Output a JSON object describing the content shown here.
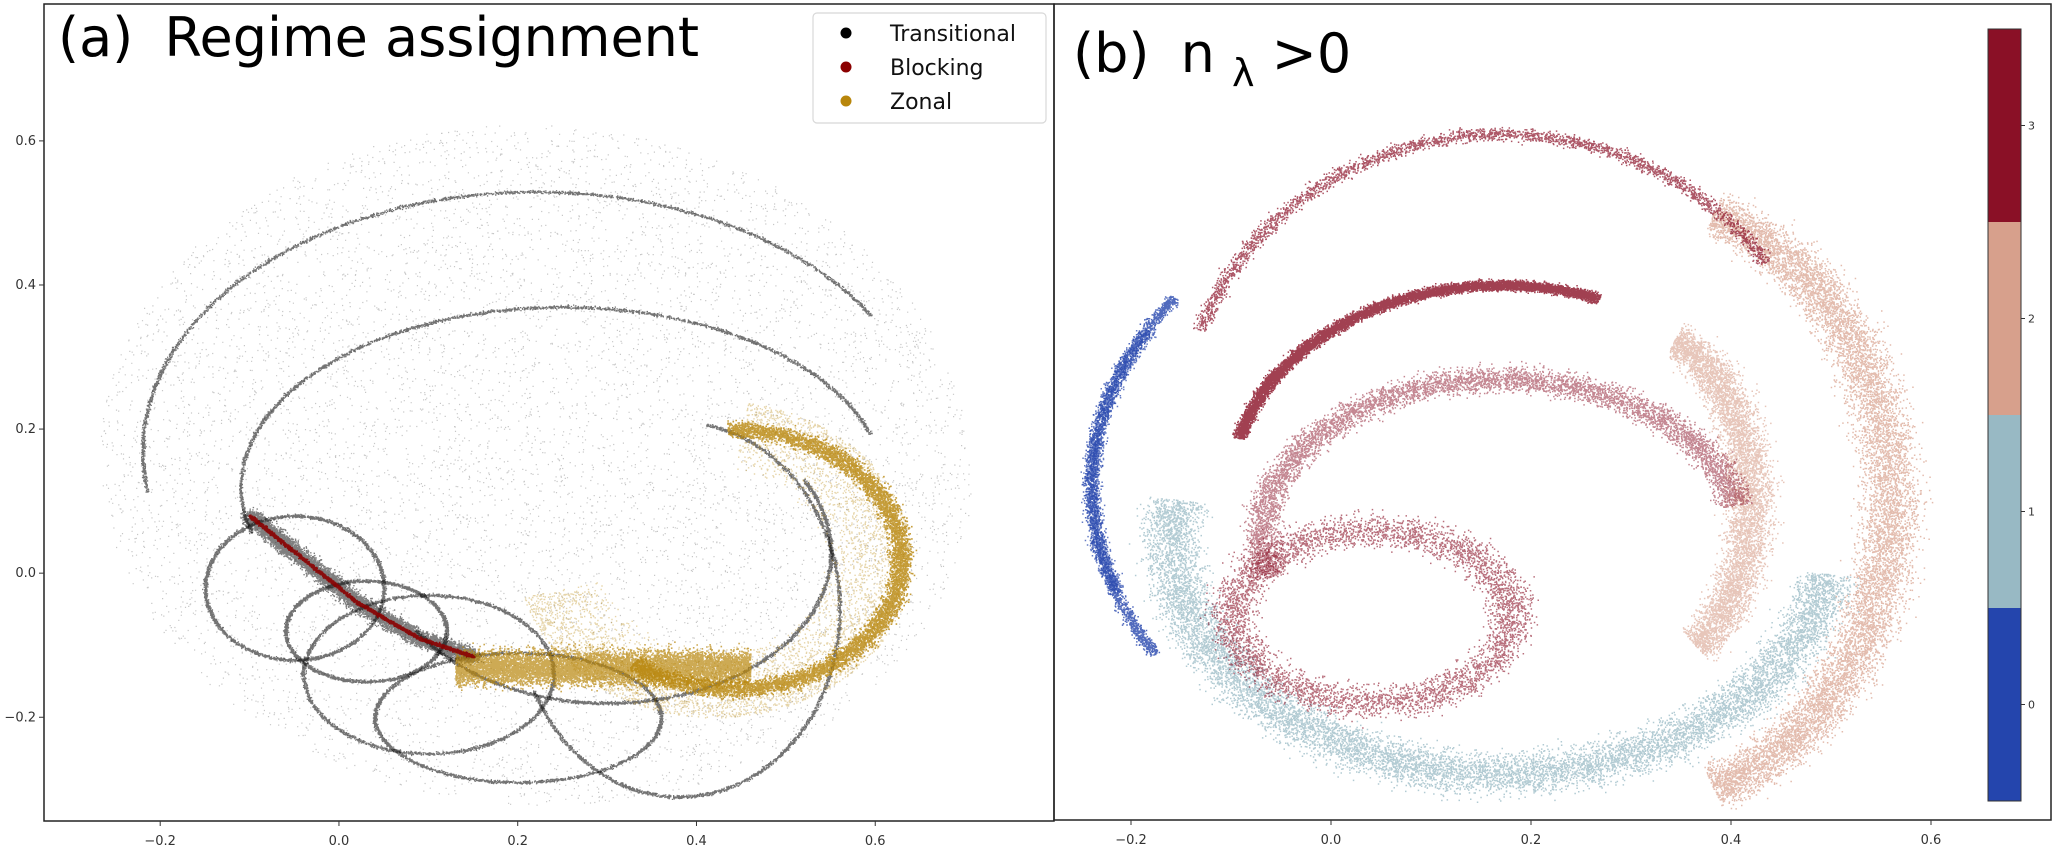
{
  "chart_data": [
    {
      "type": "scatter",
      "panel": "a",
      "title": "(a) Regime assignment",
      "title_parts": {
        "label": "(a)",
        "text": "Regime assignment"
      },
      "xlabel": "",
      "ylabel": "",
      "xlim": [
        -0.33,
        0.8
      ],
      "ylim": [
        -0.344,
        0.79
      ],
      "x_ticks": [
        -0.2,
        0.0,
        0.2,
        0.4,
        0.6
      ],
      "x_tick_labels": [
        "−0.2",
        "0.0",
        "0.2",
        "0.4",
        "0.6"
      ],
      "y_ticks": [
        -0.2,
        0.0,
        0.2,
        0.4,
        0.6
      ],
      "y_tick_labels": [
        "−0.2",
        "0.0",
        "0.2",
        "0.4",
        "0.6"
      ],
      "grid": false,
      "legend": {
        "placement": "top-right",
        "entries": [
          {
            "label": "Transitional",
            "color": "#000000"
          },
          {
            "label": "Blocking",
            "color": "#8b0000"
          },
          {
            "label": "Zonal",
            "color": "#b8860b"
          }
        ]
      },
      "series": [
        {
          "name": "Transitional",
          "color": "#000000",
          "description": "diffuse point cloud spanning roughly x in [-0.28, 0.72], y in [-0.33, 0.63] with many thin elliptical orbit arcs",
          "extent": {
            "x": [
              -0.28,
              0.72
            ],
            "y": [
              -0.33,
              0.63
            ]
          },
          "arcs": [
            {
              "cx": 0.22,
              "cy": 0.17,
              "rx": 0.44,
              "ry": 0.36,
              "t0": 0.55,
              "t1": 3.3
            },
            {
              "cx": 0.25,
              "cy": 0.12,
              "rx": 0.36,
              "ry": 0.25,
              "t0": 0.3,
              "t1": 3.4
            },
            {
              "cx": 0.3,
              "cy": 0.03,
              "rx": 0.25,
              "ry": 0.21,
              "t0": -2.6,
              "t1": 0.5
            },
            {
              "cx": 0.38,
              "cy": -0.05,
              "rx": 0.18,
              "ry": 0.26,
              "t0": -2.7,
              "t1": 1.4
            },
            {
              "cx": 0.1,
              "cy": -0.14,
              "rx": 0.14,
              "ry": 0.11,
              "t0": 0.0,
              "t1": 6.28
            },
            {
              "cx": -0.05,
              "cy": -0.02,
              "rx": 0.1,
              "ry": 0.1,
              "t0": 0.0,
              "t1": 6.28
            },
            {
              "cx": 0.03,
              "cy": -0.08,
              "rx": 0.09,
              "ry": 0.07,
              "t0": 0.0,
              "t1": 6.28
            },
            {
              "cx": 0.2,
              "cy": -0.2,
              "rx": 0.16,
              "ry": 0.09,
              "t0": 0.0,
              "t1": 6.28
            }
          ]
        },
        {
          "name": "Blocking",
          "color": "#8b0000",
          "description": "narrow band running from about (-0.10, 0.08) to (0.15, -0.11)",
          "path": [
            [
              -0.1,
              0.08
            ],
            [
              -0.05,
              0.03
            ],
            [
              0.02,
              -0.04
            ],
            [
              0.09,
              -0.09
            ],
            [
              0.15,
              -0.115
            ]
          ]
        },
        {
          "name": "Zonal",
          "color": "#b8860b",
          "description": "dense spiral band region from about x=0.13 to 0.64, y=-0.24 to 0.24",
          "extent": {
            "x": [
              0.13,
              0.64
            ],
            "y": [
              -0.24,
              0.24
            ]
          }
        }
      ]
    },
    {
      "type": "scatter",
      "panel": "b",
      "title": "(b) nλ >0",
      "title_parts": {
        "label": "(b)",
        "base": "n",
        "subscript": "λ",
        "rest": ">0"
      },
      "xlabel": "",
      "ylabel": "",
      "xlim": [
        -0.277,
        0.72
      ],
      "ylim": [
        -0.344,
        0.79
      ],
      "x_ticks": [
        -0.2,
        0.0,
        0.2,
        0.4,
        0.6
      ],
      "x_tick_labels": [
        "−0.2",
        "0.0",
        "0.2",
        "0.4",
        "0.6"
      ],
      "y_ticks": [],
      "grid": false,
      "colorbar": {
        "placement": "right",
        "ticks": [
          0,
          1,
          2,
          3
        ],
        "tick_labels": [
          "0",
          "1",
          "2",
          "3"
        ],
        "range": [
          -0.5,
          3.5
        ],
        "levels": [
          {
            "value": 0,
            "color": "#2445ad"
          },
          {
            "value": 1,
            "color": "#98b9c4"
          },
          {
            "value": 2,
            "color": "#d7a08c"
          },
          {
            "value": 3,
            "color": "#8a1026"
          }
        ]
      },
      "series": [
        {
          "name": "n=0",
          "color": "#2445ad",
          "description": "thin arcs on far-left edge",
          "extent": {
            "x": [
              -0.26,
              -0.13
            ],
            "y": [
              -0.12,
              0.42
            ]
          }
        },
        {
          "name": "n=1",
          "color": "#98b9c4",
          "description": "lower crescent band",
          "extent": {
            "x": [
              -0.2,
              0.52
            ],
            "y": [
              -0.37,
              0.1
            ]
          }
        },
        {
          "name": "n=2",
          "color": "#d7a08c",
          "description": "right crescent region",
          "extent": {
            "x": [
              0.37,
              0.6
            ],
            "y": [
              -0.32,
              0.52
            ]
          }
        },
        {
          "name": "n=3",
          "color": "#8a1026",
          "description": "upper-center arcs and dense loop",
          "extent": {
            "x": [
              -0.17,
              0.45
            ],
            "y": [
              -0.25,
              0.6
            ]
          }
        }
      ]
    }
  ]
}
